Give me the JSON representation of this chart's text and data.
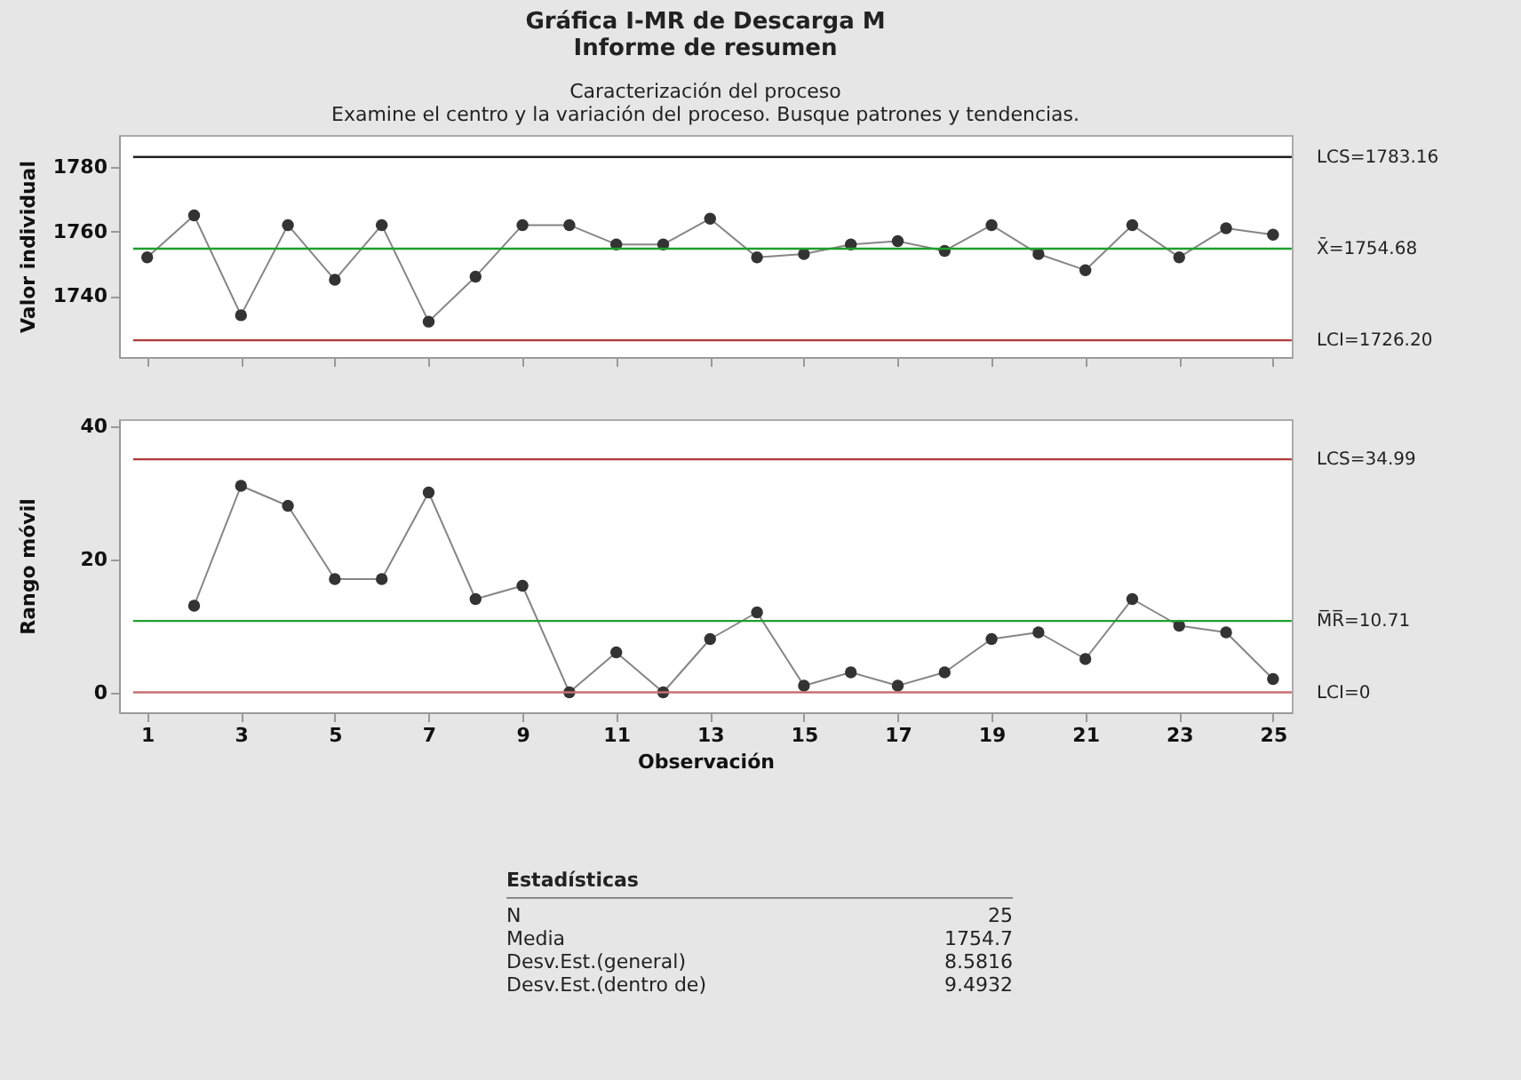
{
  "chart_data": [
    {
      "type": "line",
      "title": "Gráfica I-MR de Descarga M",
      "subtitle": "Informe de resumen",
      "annotations": [
        "Caracterización del proceso",
        "Examine el centro y la variación del proceso. Busque patrones y tendencias."
      ],
      "ylabel": "Valor individual",
      "x": [
        1,
        2,
        3,
        4,
        5,
        6,
        7,
        8,
        9,
        10,
        11,
        12,
        13,
        14,
        15,
        16,
        17,
        18,
        19,
        20,
        21,
        22,
        23,
        24,
        25
      ],
      "series": [
        {
          "color": "#333333",
          "values": [
            1752,
            1765,
            1734,
            1762,
            1745,
            1762,
            1732,
            1746,
            1762,
            1762,
            1756,
            1756,
            1764,
            1752,
            1753,
            1756,
            1757,
            1754,
            1762,
            1753,
            1748,
            1762,
            1752,
            1761,
            1759
          ]
        }
      ],
      "xlim": [
        0.4,
        25.4
      ],
      "xticks": [
        1,
        3,
        5,
        7,
        9,
        11,
        13,
        15,
        17,
        19,
        21,
        23,
        25
      ],
      "ylim": [
        1721,
        1790
      ],
      "yticks": [
        1740,
        1760,
        1780
      ],
      "tick_labels": "y",
      "marker": "circle",
      "grid": false,
      "ref_lines": [
        {
          "axis": "y",
          "value": 1783.16,
          "label": "LCS=1783.16",
          "color": "#1f1f1f"
        },
        {
          "axis": "y",
          "value": 1754.68,
          "label": "X̄=1754.68",
          "color": "#1e9e2e"
        },
        {
          "axis": "y",
          "value": 1726.2,
          "label": "LCI=1726.20",
          "color": "#b23a3a"
        }
      ]
    },
    {
      "type": "line",
      "xlabel": "Observación",
      "ylabel": "Rango móvil",
      "series": [
        {
          "color": "#333333",
          "x": [
            2,
            3,
            4,
            5,
            6,
            7,
            8,
            9,
            10,
            11,
            12,
            13,
            14,
            15,
            16,
            17,
            18,
            19,
            20,
            21,
            22,
            23,
            24,
            25
          ],
          "values": [
            13,
            31,
            28,
            17,
            17,
            30,
            14,
            16,
            0,
            6,
            0,
            8,
            12,
            1,
            3,
            1,
            3,
            8,
            9,
            5,
            14,
            10,
            9,
            2
          ]
        }
      ],
      "xlim": [
        0.4,
        25.4
      ],
      "xticks": [
        1,
        3,
        5,
        7,
        9,
        11,
        13,
        15,
        17,
        19,
        21,
        23,
        25
      ],
      "ylim": [
        -3,
        41
      ],
      "yticks": [
        0,
        20,
        40
      ],
      "marker": "circle",
      "grid": false,
      "ref_lines": [
        {
          "axis": "y",
          "value": 34.99,
          "label": "LCS=34.99",
          "color": "#b23a3a"
        },
        {
          "axis": "y",
          "value": 10.71,
          "label": "M̅R̅=10.71",
          "color": "#1e9e2e"
        },
        {
          "axis": "y",
          "value": 0,
          "label": "LCI=0",
          "color": "#c87070"
        }
      ],
      "annotations": [
        "Estadísticas",
        "N",
        "25",
        "Media",
        "1754.7",
        "Desv.Est.(general)",
        "8.5816",
        "Desv.Est.(dentro de)",
        "9.4932"
      ]
    }
  ]
}
